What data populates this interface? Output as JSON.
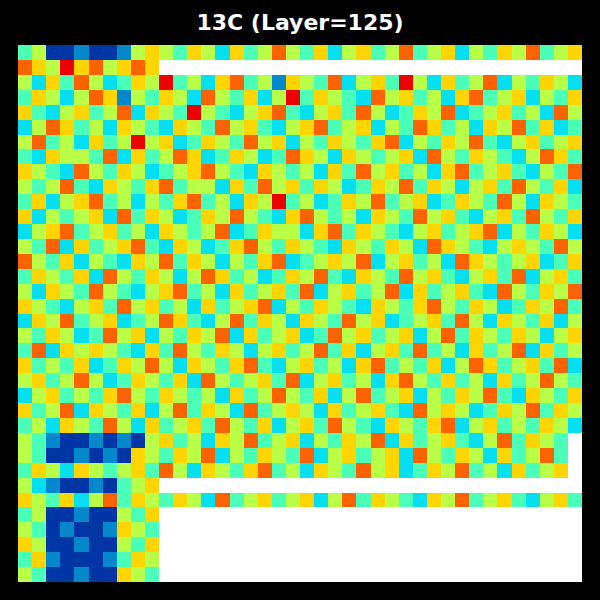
{
  "chart_data": {
    "type": "heatmap",
    "title": "13C (Layer=125)",
    "color": "Jet",
    "tick_labels": false,
    "zlim": [
      0,
      9
    ],
    "z": [
      [
        4,
        5,
        1,
        1,
        2,
        1,
        1,
        2,
        5,
        6,
        5,
        4,
        6,
        5,
        3,
        6,
        4,
        5,
        7,
        5,
        4,
        6,
        3,
        5,
        6,
        4,
        5,
        7,
        4,
        5,
        6,
        3,
        5,
        4,
        6,
        5,
        7,
        4,
        5,
        6
      ],
      [
        7,
        6,
        5,
        8,
        6,
        7,
        5,
        6,
        7,
        6,
        null,
        null,
        null,
        null,
        null,
        null,
        null,
        null,
        null,
        null,
        null,
        null,
        null,
        null,
        null,
        null,
        null,
        null,
        null,
        null,
        null,
        null,
        null,
        null,
        null,
        null,
        null,
        null,
        null,
        null
      ],
      [
        5,
        3,
        6,
        4,
        7,
        5,
        3,
        4,
        6,
        5,
        8,
        4,
        5,
        3,
        6,
        7,
        4,
        5,
        2,
        6,
        5,
        4,
        7,
        3,
        5,
        6,
        4,
        8,
        5,
        3,
        6,
        4,
        5,
        7,
        3,
        5,
        4,
        6,
        5,
        3
      ],
      [
        4,
        6,
        5,
        3,
        5,
        7,
        6,
        2,
        5,
        4,
        6,
        5,
        3,
        7,
        5,
        4,
        6,
        3,
        5,
        8,
        4,
        6,
        5,
        4,
        3,
        7,
        5,
        6,
        4,
        5,
        3,
        6,
        7,
        4,
        5,
        6,
        3,
        5,
        4,
        6
      ],
      [
        6,
        4,
        3,
        5,
        6,
        4,
        5,
        7,
        3,
        6,
        5,
        4,
        8,
        5,
        4,
        3,
        5,
        6,
        7,
        4,
        3,
        5,
        6,
        4,
        7,
        5,
        3,
        4,
        6,
        5,
        7,
        3,
        4,
        5,
        6,
        4,
        5,
        3,
        7,
        5
      ],
      [
        3,
        5,
        7,
        6,
        4,
        5,
        3,
        6,
        5,
        4,
        3,
        6,
        5,
        4,
        7,
        5,
        6,
        4,
        3,
        5,
        6,
        7,
        4,
        5,
        6,
        3,
        5,
        4,
        7,
        6,
        4,
        5,
        3,
        6,
        5,
        7,
        4,
        6,
        3,
        4
      ],
      [
        5,
        7,
        4,
        5,
        3,
        6,
        4,
        5,
        8,
        5,
        6,
        3,
        4,
        6,
        5,
        4,
        7,
        5,
        6,
        3,
        5,
        4,
        6,
        5,
        4,
        6,
        7,
        3,
        5,
        4,
        6,
        5,
        7,
        4,
        3,
        5,
        6,
        4,
        5,
        6
      ],
      [
        4,
        3,
        6,
        5,
        5,
        4,
        7,
        3,
        6,
        4,
        5,
        7,
        6,
        3,
        4,
        6,
        5,
        3,
        4,
        7,
        6,
        5,
        3,
        6,
        5,
        4,
        5,
        6,
        3,
        7,
        5,
        4,
        6,
        5,
        4,
        3,
        5,
        7,
        6,
        4
      ],
      [
        6,
        5,
        4,
        3,
        7,
        5,
        4,
        6,
        5,
        3,
        4,
        5,
        6,
        7,
        5,
        4,
        3,
        6,
        5,
        4,
        5,
        3,
        6,
        4,
        7,
        5,
        6,
        4,
        5,
        3,
        6,
        7,
        4,
        5,
        6,
        4,
        3,
        5,
        4,
        7
      ],
      [
        5,
        4,
        5,
        7,
        4,
        3,
        6,
        5,
        4,
        6,
        7,
        4,
        5,
        5,
        3,
        6,
        4,
        7,
        5,
        6,
        4,
        6,
        5,
        3,
        4,
        6,
        5,
        7,
        4,
        6,
        5,
        3,
        5,
        6,
        4,
        7,
        5,
        4,
        6,
        3
      ],
      [
        4,
        6,
        3,
        5,
        6,
        7,
        4,
        5,
        3,
        5,
        4,
        6,
        7,
        4,
        5,
        3,
        6,
        5,
        8,
        4,
        5,
        3,
        4,
        6,
        5,
        7,
        4,
        5,
        6,
        3,
        4,
        6,
        5,
        4,
        7,
        5,
        3,
        6,
        5,
        4
      ],
      [
        6,
        3,
        5,
        4,
        5,
        6,
        3,
        7,
        4,
        6,
        5,
        3,
        4,
        6,
        5,
        7,
        5,
        4,
        3,
        6,
        7,
        5,
        4,
        5,
        3,
        6,
        5,
        4,
        7,
        5,
        6,
        4,
        3,
        5,
        6,
        4,
        7,
        5,
        4,
        6
      ],
      [
        3,
        5,
        6,
        7,
        4,
        5,
        6,
        4,
        5,
        3,
        6,
        5,
        4,
        5,
        7,
        3,
        4,
        6,
        5,
        5,
        3,
        6,
        7,
        4,
        6,
        5,
        4,
        3,
        5,
        6,
        4,
        5,
        6,
        7,
        3,
        5,
        4,
        6,
        5,
        3
      ],
      [
        5,
        4,
        7,
        3,
        6,
        4,
        5,
        6,
        7,
        4,
        3,
        6,
        5,
        3,
        4,
        6,
        7,
        5,
        4,
        6,
        5,
        4,
        3,
        6,
        5,
        4,
        6,
        5,
        3,
        7,
        6,
        5,
        4,
        3,
        5,
        6,
        5,
        4,
        7,
        5
      ],
      [
        7,
        5,
        4,
        6,
        3,
        5,
        4,
        3,
        6,
        5,
        7,
        4,
        6,
        5,
        3,
        5,
        4,
        6,
        7,
        3,
        4,
        5,
        6,
        5,
        7,
        3,
        5,
        6,
        4,
        5,
        3,
        7,
        6,
        5,
        4,
        5,
        6,
        3,
        4,
        6
      ],
      [
        4,
        6,
        5,
        4,
        6,
        3,
        7,
        5,
        4,
        6,
        5,
        3,
        5,
        7,
        6,
        4,
        5,
        3,
        4,
        6,
        5,
        7,
        4,
        3,
        6,
        5,
        4,
        7,
        5,
        6,
        4,
        3,
        5,
        6,
        4,
        7,
        3,
        5,
        6,
        4
      ],
      [
        5,
        3,
        6,
        5,
        4,
        7,
        5,
        4,
        3,
        5,
        6,
        7,
        4,
        5,
        3,
        6,
        4,
        5,
        6,
        4,
        7,
        3,
        5,
        6,
        4,
        5,
        7,
        3,
        6,
        4,
        5,
        6,
        4,
        3,
        7,
        5,
        4,
        6,
        5,
        7
      ],
      [
        6,
        5,
        4,
        3,
        5,
        6,
        4,
        7,
        5,
        6,
        4,
        5,
        3,
        6,
        4,
        5,
        6,
        7,
        3,
        5,
        4,
        6,
        5,
        4,
        3,
        6,
        5,
        4,
        6,
        7,
        5,
        4,
        6,
        5,
        3,
        4,
        6,
        5,
        7,
        4
      ],
      [
        3,
        6,
        5,
        7,
        4,
        5,
        6,
        3,
        4,
        5,
        7,
        6,
        4,
        3,
        5,
        7,
        4,
        6,
        5,
        3,
        6,
        5,
        4,
        7,
        5,
        6,
        3,
        4,
        5,
        6,
        4,
        7,
        5,
        3,
        6,
        5,
        4,
        6,
        3,
        5
      ],
      [
        5,
        4,
        6,
        5,
        3,
        4,
        7,
        5,
        6,
        3,
        5,
        4,
        6,
        5,
        7,
        3,
        6,
        4,
        5,
        6,
        3,
        4,
        7,
        5,
        6,
        4,
        5,
        6,
        3,
        5,
        7,
        4,
        6,
        5,
        4,
        6,
        5,
        3,
        5,
        6
      ],
      [
        4,
        7,
        3,
        6,
        5,
        6,
        5,
        4,
        3,
        6,
        4,
        7,
        5,
        4,
        6,
        5,
        3,
        5,
        6,
        4,
        5,
        7,
        4,
        6,
        3,
        5,
        6,
        4,
        7,
        4,
        5,
        3,
        6,
        4,
        5,
        7,
        3,
        6,
        4,
        5
      ],
      [
        6,
        4,
        5,
        4,
        6,
        3,
        4,
        6,
        5,
        7,
        5,
        3,
        6,
        5,
        4,
        6,
        7,
        4,
        3,
        5,
        6,
        4,
        5,
        3,
        6,
        7,
        4,
        5,
        4,
        6,
        3,
        5,
        7,
        6,
        4,
        5,
        6,
        4,
        7,
        3
      ],
      [
        5,
        6,
        4,
        5,
        7,
        5,
        3,
        4,
        6,
        5,
        4,
        6,
        3,
        7,
        5,
        4,
        5,
        6,
        4,
        7,
        3,
        5,
        6,
        4,
        5,
        3,
        6,
        7,
        5,
        4,
        6,
        4,
        5,
        3,
        6,
        4,
        5,
        7,
        5,
        4
      ],
      [
        3,
        5,
        6,
        4,
        5,
        4,
        6,
        7,
        5,
        4,
        6,
        5,
        4,
        5,
        3,
        6,
        4,
        5,
        7,
        5,
        4,
        6,
        3,
        5,
        7,
        4,
        5,
        6,
        3,
        5,
        4,
        6,
        5,
        7,
        4,
        3,
        6,
        5,
        4,
        6
      ],
      [
        6,
        4,
        5,
        7,
        3,
        6,
        5,
        4,
        6,
        3,
        5,
        7,
        4,
        6,
        5,
        3,
        7,
        4,
        5,
        6,
        5,
        3,
        6,
        4,
        5,
        6,
        4,
        3,
        7,
        5,
        6,
        5,
        3,
        4,
        6,
        5,
        7,
        4,
        6,
        5
      ],
      [
        4,
        5,
        3,
        6,
        5,
        4,
        7,
        5,
        3,
        6,
        4,
        5,
        6,
        4,
        7,
        5,
        4,
        6,
        3,
        5,
        6,
        4,
        7,
        5,
        4,
        3,
        6,
        5,
        4,
        6,
        7,
        3,
        5,
        6,
        4,
        5,
        4,
        6,
        5,
        3
      ],
      [
        5,
        4,
        2,
        1,
        1,
        2,
        1,
        2,
        1,
        5,
        6,
        4,
        5,
        3,
        6,
        5,
        7,
        4,
        5,
        6,
        3,
        5,
        4,
        6,
        5,
        7,
        3,
        6,
        4,
        5,
        6,
        4,
        3,
        5,
        7,
        4,
        6,
        5,
        4,
        null
      ],
      [
        5,
        4,
        1,
        1,
        2,
        1,
        2,
        1,
        6,
        5,
        4,
        6,
        5,
        7,
        3,
        5,
        4,
        6,
        5,
        4,
        7,
        3,
        5,
        6,
        4,
        5,
        6,
        3,
        7,
        5,
        4,
        6,
        5,
        3,
        6,
        4,
        5,
        7,
        4,
        null
      ],
      [
        4,
        6,
        5,
        3,
        6,
        5,
        4,
        5,
        6,
        4,
        7,
        5,
        3,
        6,
        5,
        4,
        6,
        7,
        4,
        5,
        3,
        6,
        5,
        4,
        7,
        5,
        6,
        3,
        4,
        6,
        5,
        7,
        4,
        5,
        3,
        6,
        4,
        5,
        6,
        null
      ],
      [
        5,
        3,
        2,
        1,
        1,
        2,
        1,
        4,
        5,
        6,
        null,
        null,
        null,
        null,
        null,
        null,
        null,
        null,
        null,
        null,
        null,
        null,
        null,
        null,
        null,
        null,
        null,
        null,
        null,
        null,
        null,
        null,
        null,
        null,
        null,
        null,
        null,
        null,
        null,
        null
      ],
      [
        6,
        5,
        4,
        6,
        3,
        5,
        7,
        4,
        6,
        5,
        4,
        6,
        5,
        3,
        7,
        4,
        5,
        6,
        4,
        5,
        6,
        3,
        5,
        7,
        4,
        6,
        5,
        4,
        3,
        6,
        5,
        7,
        4,
        5,
        6,
        4,
        3,
        5,
        6,
        4
      ],
      [
        4,
        5,
        1,
        1,
        2,
        1,
        1,
        5,
        4,
        6,
        null,
        null,
        null,
        null,
        null,
        null,
        null,
        null,
        null,
        null,
        null,
        null,
        null,
        null,
        null,
        null,
        null,
        null,
        null,
        null,
        null,
        null,
        null,
        null,
        null,
        null,
        null,
        null,
        null,
        null
      ],
      [
        5,
        4,
        1,
        2,
        1,
        1,
        2,
        6,
        5,
        4,
        null,
        null,
        null,
        null,
        null,
        null,
        null,
        null,
        null,
        null,
        null,
        null,
        null,
        null,
        null,
        null,
        null,
        null,
        null,
        null,
        null,
        null,
        null,
        null,
        null,
        null,
        null,
        null,
        null,
        null
      ],
      [
        6,
        5,
        1,
        1,
        2,
        1,
        1,
        5,
        4,
        6,
        null,
        null,
        null,
        null,
        null,
        null,
        null,
        null,
        null,
        null,
        null,
        null,
        null,
        null,
        null,
        null,
        null,
        null,
        null,
        null,
        null,
        null,
        null,
        null,
        null,
        null,
        null,
        null,
        null,
        null
      ],
      [
        4,
        6,
        2,
        1,
        1,
        1,
        2,
        4,
        6,
        5,
        null,
        null,
        null,
        null,
        null,
        null,
        null,
        null,
        null,
        null,
        null,
        null,
        null,
        null,
        null,
        null,
        null,
        null,
        null,
        null,
        null,
        null,
        null,
        null,
        null,
        null,
        null,
        null,
        null,
        null
      ],
      [
        5,
        4,
        1,
        1,
        2,
        1,
        1,
        6,
        5,
        4,
        null,
        null,
        null,
        null,
        null,
        null,
        null,
        null,
        null,
        null,
        null,
        null,
        null,
        null,
        null,
        null,
        null,
        null,
        null,
        null,
        null,
        null,
        null,
        null,
        null,
        null,
        null,
        null,
        null,
        null
      ]
    ]
  }
}
